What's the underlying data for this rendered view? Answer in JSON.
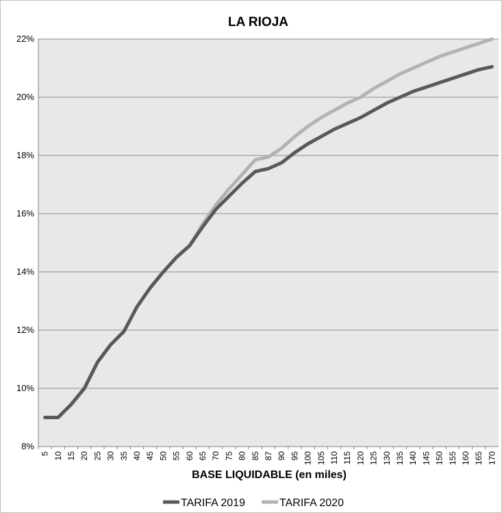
{
  "chart_data": {
    "type": "line",
    "title": "LA RIOJA",
    "xlabel": "BASE LIQUIDABLE (en miles)",
    "ylabel": "",
    "categories": [
      "5",
      "10",
      "15",
      "20",
      "25",
      "30",
      "35",
      "40",
      "45",
      "50",
      "55",
      "60",
      "65",
      "70",
      "75",
      "80",
      "85",
      "87",
      "90",
      "95",
      "100",
      "105",
      "110",
      "115",
      "120",
      "125",
      "130",
      "135",
      "140",
      "145",
      "150",
      "155",
      "160",
      "165",
      "170"
    ],
    "ylim": [
      8,
      22
    ],
    "yticks": [
      "8%",
      "10%",
      "12%",
      "14%",
      "16%",
      "18%",
      "20%",
      "22%"
    ],
    "yticks_values": [
      8,
      10,
      12,
      14,
      16,
      18,
      20,
      22
    ],
    "grid": true,
    "legend_position": "bottom",
    "series": [
      {
        "name": "TARIFA 2019",
        "color": "#595959",
        "values": [
          9.0,
          9.0,
          9.45,
          10.0,
          10.9,
          11.5,
          11.95,
          12.8,
          13.45,
          14.0,
          14.5,
          14.9,
          15.55,
          16.15,
          16.6,
          17.05,
          17.45,
          17.55,
          17.75,
          18.1,
          18.4,
          18.65,
          18.9,
          19.1,
          19.3,
          19.55,
          19.8,
          20.0,
          20.2,
          20.35,
          20.5,
          20.65,
          20.8,
          20.95,
          21.05
        ]
      },
      {
        "name": "TARIFA 2020",
        "color": "#b3b3b3",
        "values": [
          9.0,
          9.0,
          9.45,
          10.0,
          10.9,
          11.5,
          11.95,
          12.8,
          13.45,
          14.0,
          14.5,
          14.9,
          15.65,
          16.3,
          16.85,
          17.35,
          17.85,
          17.95,
          18.25,
          18.65,
          19.0,
          19.3,
          19.55,
          19.8,
          20.0,
          20.3,
          20.55,
          20.8,
          21.0,
          21.2,
          21.4,
          21.55,
          21.7,
          21.85,
          22.0
        ]
      }
    ]
  }
}
